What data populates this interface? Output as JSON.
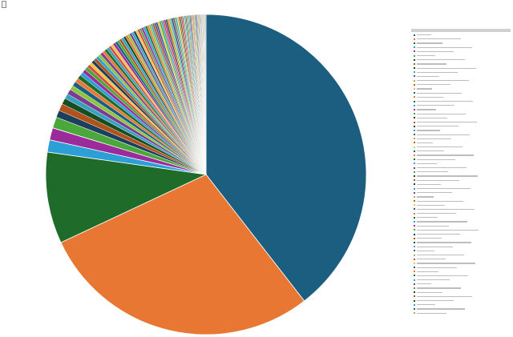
{
  "header": {
    "tag_label": ""
  },
  "chart_data": {
    "type": "pie",
    "title": "",
    "legend_placement": "right",
    "slices": [
      {
        "value": 38.5,
        "color": "#1b5e80"
      },
      {
        "value": 27.8,
        "color": "#e87733"
      },
      {
        "value": 9.0,
        "color": "#1f6b2a"
      },
      {
        "value": 1.2,
        "color": "#2b9fd6"
      },
      {
        "value": 1.2,
        "color": "#9b2b9a"
      },
      {
        "value": 1.1,
        "color": "#4aa83a"
      },
      {
        "value": 0.7,
        "color": "#1b3f5c"
      },
      {
        "value": 0.7,
        "color": "#b0531a"
      },
      {
        "value": 0.6,
        "color": "#174d22"
      },
      {
        "value": 0.5,
        "color": "#3aa0c0"
      },
      {
        "value": 0.5,
        "color": "#7a3d91"
      },
      {
        "value": 0.45,
        "color": "#8cc63f"
      },
      {
        "value": 0.45,
        "color": "#1b5e80"
      },
      {
        "value": 0.4,
        "color": "#e87733"
      },
      {
        "value": 0.4,
        "color": "#1f6b2a"
      },
      {
        "value": 0.35,
        "color": "#2b9fd6"
      },
      {
        "value": 0.35,
        "color": "#9b2b9a"
      },
      {
        "value": 0.35,
        "color": "#4aa83a"
      },
      {
        "value": 0.3,
        "color": "#d84c3a"
      },
      {
        "value": 0.3,
        "color": "#f0c24a"
      },
      {
        "value": 0.3,
        "color": "#1b3f5c"
      },
      {
        "value": 0.3,
        "color": "#b0531a"
      },
      {
        "value": 0.28,
        "color": "#2b9fd6"
      },
      {
        "value": 0.28,
        "color": "#8cc63f"
      },
      {
        "value": 0.28,
        "color": "#7a3d91"
      },
      {
        "value": 0.26,
        "color": "#e87733"
      },
      {
        "value": 0.26,
        "color": "#1f6b2a"
      },
      {
        "value": 0.26,
        "color": "#3aa0c0"
      },
      {
        "value": 0.25,
        "color": "#d84c3a"
      },
      {
        "value": 0.25,
        "color": "#f0c24a"
      },
      {
        "value": 0.25,
        "color": "#9b2b9a"
      },
      {
        "value": 0.24,
        "color": "#1b5e80"
      },
      {
        "value": 0.24,
        "color": "#4aa83a"
      },
      {
        "value": 0.24,
        "color": "#b0531a"
      },
      {
        "value": 0.23,
        "color": "#2b9fd6"
      },
      {
        "value": 0.23,
        "color": "#174d22"
      },
      {
        "value": 0.23,
        "color": "#e87733"
      },
      {
        "value": 0.22,
        "color": "#8cc63f"
      },
      {
        "value": 0.22,
        "color": "#7a3d91"
      },
      {
        "value": 0.22,
        "color": "#3aa0c0"
      },
      {
        "value": 0.21,
        "color": "#1b3f5c"
      },
      {
        "value": 0.21,
        "color": "#f0c24a"
      },
      {
        "value": 0.21,
        "color": "#d84c3a"
      },
      {
        "value": 0.2,
        "color": "#4aa83a"
      },
      {
        "value": 0.2,
        "color": "#9b2b9a"
      },
      {
        "value": 0.2,
        "color": "#2b9fd6"
      },
      {
        "value": 0.19,
        "color": "#1f6b2a"
      },
      {
        "value": 0.19,
        "color": "#e87733"
      },
      {
        "value": 0.19,
        "color": "#8cc63f"
      },
      {
        "value": 0.18,
        "color": "#3aa0c0"
      },
      {
        "value": 0.18,
        "color": "#b0531a"
      },
      {
        "value": 0.18,
        "color": "#7a3d91"
      },
      {
        "value": 0.17,
        "color": "#1b5e80"
      },
      {
        "value": 0.17,
        "color": "#f0c24a"
      },
      {
        "value": 0.17,
        "color": "#4aa83a"
      },
      {
        "value": 0.16,
        "color": "#2b9fd6"
      },
      {
        "value": 0.16,
        "color": "#d84c3a"
      },
      {
        "value": 0.16,
        "color": "#9b2b9a"
      },
      {
        "value": 0.15,
        "color": "#174d22"
      },
      {
        "value": 0.15,
        "color": "#e87733"
      },
      {
        "value": 0.15,
        "color": "#8cc63f"
      },
      {
        "value": 0.14,
        "color": "#3aa0c0"
      },
      {
        "value": 0.14,
        "color": "#1b3f5c"
      },
      {
        "value": 0.14,
        "color": "#7a3d91"
      },
      {
        "value": 0.13,
        "color": "#4aa83a"
      },
      {
        "value": 0.13,
        "color": "#2b9fd6"
      },
      {
        "value": 0.13,
        "color": "#f0c24a"
      },
      {
        "value": 0.12,
        "color": "#b0531a"
      },
      {
        "value": 0.12,
        "color": "#1f6b2a"
      },
      {
        "value": 0.12,
        "color": "#d84c3a"
      },
      {
        "value": 0.11,
        "color": "#9b2b9a"
      },
      {
        "value": 0.11,
        "color": "#8cc63f"
      },
      {
        "value": 0.11,
        "color": "#3aa0c0"
      },
      {
        "value": 0.1,
        "color": "#1b5e80"
      },
      {
        "value": 0.1,
        "color": "#e87733"
      },
      {
        "value": 0.1,
        "color": "#4aa83a"
      },
      {
        "value": 0.1,
        "color": "#2b9fd6"
      },
      {
        "value": 0.09,
        "color": "#7a3d91"
      },
      {
        "value": 0.09,
        "color": "#174d22"
      },
      {
        "value": 0.09,
        "color": "#f0c24a"
      },
      {
        "value": 0.09,
        "color": "#d84c3a"
      },
      {
        "value": 0.08,
        "color": "#3aa0c0"
      },
      {
        "value": 0.08,
        "color": "#8cc63f"
      },
      {
        "value": 0.08,
        "color": "#b0531a"
      },
      {
        "value": 0.08,
        "color": "#1b3f5c"
      },
      {
        "value": 0.07,
        "color": "#9b2b9a"
      },
      {
        "value": 0.07,
        "color": "#2b9fd6"
      },
      {
        "value": 0.07,
        "color": "#4aa83a"
      },
      {
        "value": 0.07,
        "color": "#e87733"
      },
      {
        "value": 0.06,
        "color": "#1f6b2a"
      },
      {
        "value": 0.06,
        "color": "#f0c24a"
      },
      {
        "value": 0.06,
        "color": "#7a3d91"
      },
      {
        "value": 0.06,
        "color": "#3aa0c0"
      },
      {
        "value": 0.05,
        "color": "#d84c3a"
      },
      {
        "value": 0.05,
        "color": "#8cc63f"
      },
      {
        "value": 0.05,
        "color": "#1b5e80"
      },
      {
        "value": 0.05,
        "color": "#b0531a"
      },
      {
        "value": 0.05,
        "color": "#2b9fd6"
      },
      {
        "value": 0.04,
        "color": "#4aa83a"
      },
      {
        "value": 0.04,
        "color": "#9b2b9a"
      },
      {
        "value": 0.04,
        "color": "#e87733"
      },
      {
        "value": 0.04,
        "color": "#174d22"
      }
    ],
    "legend_swatches": [
      "#1b5e80",
      "#e87733",
      "#1f6b2a",
      "#2b9fd6",
      "#9b2b9a",
      "#4aa83a",
      "#1b3f5c",
      "#b0531a",
      "#174d22",
      "#3aa0c0",
      "#7a3d91",
      "#8cc63f",
      "#d84c3a",
      "#f0c24a",
      "#1b5e80",
      "#e87733",
      "#1f6b2a",
      "#2b9fd6",
      "#9b2b9a",
      "#4aa83a",
      "#1b3f5c",
      "#b0531a",
      "#174d22",
      "#3aa0c0",
      "#7a3d91",
      "#8cc63f",
      "#d84c3a",
      "#f0c24a",
      "#1b5e80",
      "#e87733",
      "#1f6b2a",
      "#2b9fd6",
      "#9b2b9a",
      "#4aa83a",
      "#1b3f5c",
      "#b0531a",
      "#174d22",
      "#3aa0c0",
      "#7a3d91",
      "#8cc63f",
      "#d84c3a",
      "#f0c24a",
      "#1b5e80",
      "#e87733",
      "#1f6b2a",
      "#2b9fd6",
      "#9b2b9a",
      "#4aa83a",
      "#1b3f5c",
      "#b0531a",
      "#174d22",
      "#3aa0c0",
      "#7a3d91",
      "#8cc63f",
      "#d84c3a",
      "#f0c24a",
      "#1b5e80",
      "#e87733",
      "#1f6b2a",
      "#2b9fd6",
      "#9b2b9a",
      "#4aa83a",
      "#1b3f5c",
      "#b0531a",
      "#174d22",
      "#3aa0c0",
      "#7a3d91",
      "#8cc63f"
    ]
  }
}
